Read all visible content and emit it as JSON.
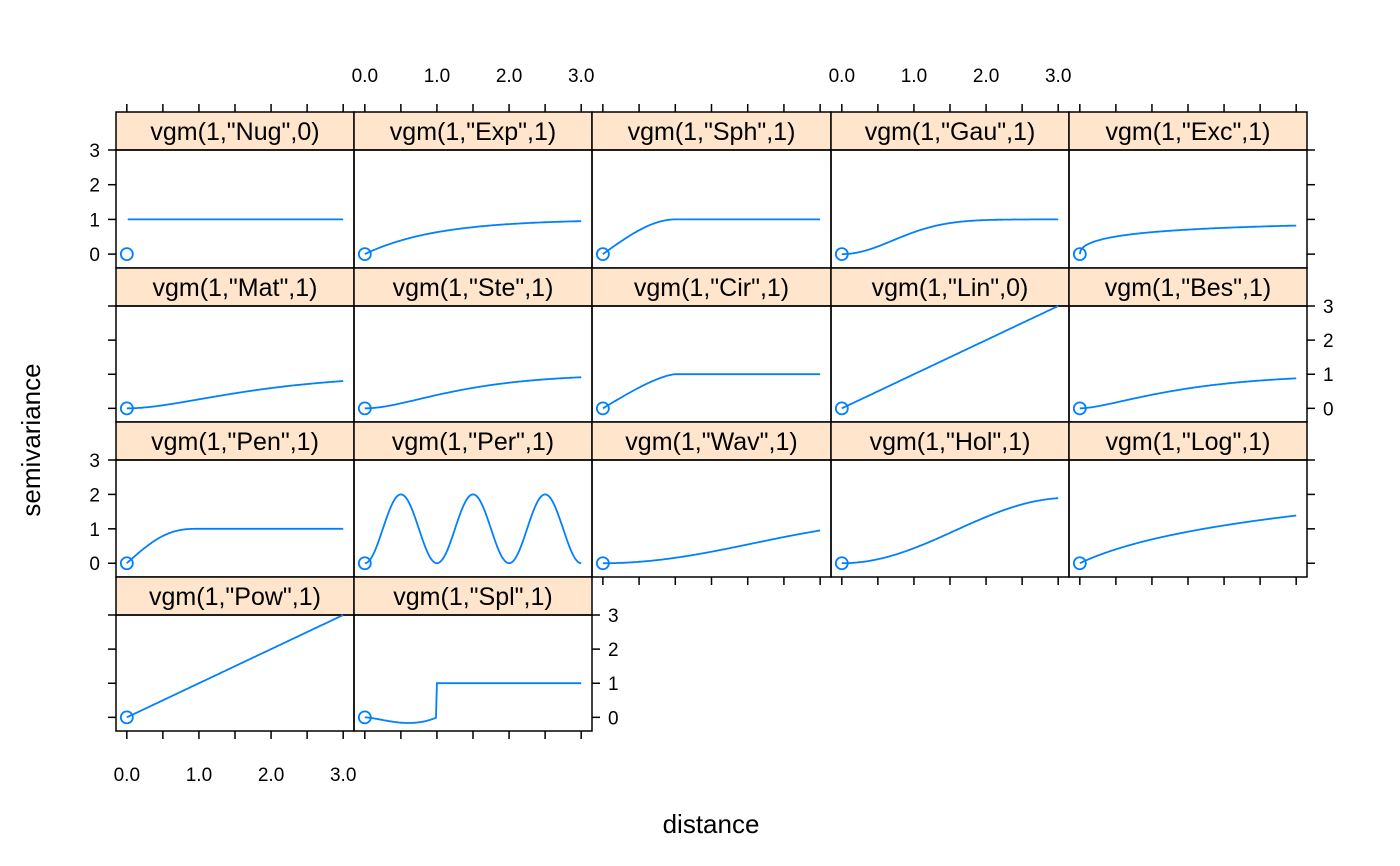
{
  "chart_data": {
    "type": "line",
    "xlabel": "distance",
    "ylabel": "semivariance",
    "xlim": [
      -0.15,
      3.15
    ],
    "ylim": [
      -0.4,
      3.0
    ],
    "x_ticks": [
      "0.0",
      "1.0",
      "2.0",
      "3.0"
    ],
    "y_ticks": [
      "0",
      "1",
      "2",
      "3"
    ],
    "layout": {
      "columns": 5,
      "rows": 4
    },
    "colors": {
      "line": "#0080ff",
      "strip": "#ffe5cc",
      "frame": "#000000"
    },
    "panels": [
      {
        "label": "vgm(1,\"Nug\",0)",
        "model": "Nug",
        "range": 0
      },
      {
        "label": "vgm(1,\"Exp\",1)",
        "model": "Exp",
        "range": 1
      },
      {
        "label": "vgm(1,\"Sph\",1)",
        "model": "Sph",
        "range": 1
      },
      {
        "label": "vgm(1,\"Gau\",1)",
        "model": "Gau",
        "range": 1
      },
      {
        "label": "vgm(1,\"Exc\",1)",
        "model": "Exc",
        "range": 1
      },
      {
        "label": "vgm(1,\"Mat\",1)",
        "model": "Mat",
        "range": 1
      },
      {
        "label": "vgm(1,\"Ste\",1)",
        "model": "Ste",
        "range": 1
      },
      {
        "label": "vgm(1,\"Cir\",1)",
        "model": "Cir",
        "range": 1
      },
      {
        "label": "vgm(1,\"Lin\",0)",
        "model": "Lin",
        "range": 0
      },
      {
        "label": "vgm(1,\"Bes\",1)",
        "model": "Bes",
        "range": 1
      },
      {
        "label": "vgm(1,\"Pen\",1)",
        "model": "Pen",
        "range": 1
      },
      {
        "label": "vgm(1,\"Per\",1)",
        "model": "Per",
        "range": 1
      },
      {
        "label": "vgm(1,\"Wav\",1)",
        "model": "Wav",
        "range": 1
      },
      {
        "label": "vgm(1,\"Hol\",1)",
        "model": "Hol",
        "range": 1
      },
      {
        "label": "vgm(1,\"Log\",1)",
        "model": "Log",
        "range": 1
      },
      {
        "label": "vgm(1,\"Pow\",1)",
        "model": "Pow",
        "range": 1
      },
      {
        "label": "vgm(1,\"Spl\",1)",
        "model": "Spl",
        "range": 1
      }
    ]
  }
}
